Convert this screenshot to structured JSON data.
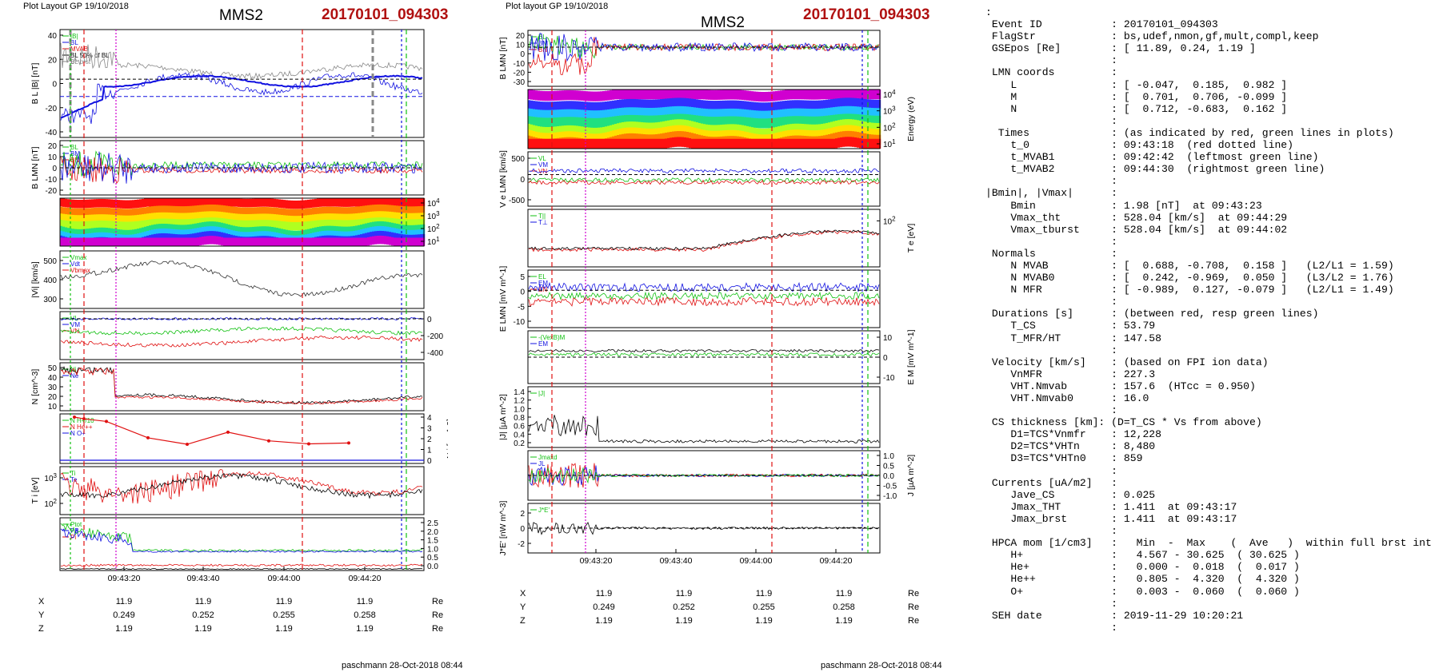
{
  "left": {
    "header": "Plot Layout GP 19/10/2018",
    "spacecraft": "MMS2",
    "event": "20170101_094303",
    "footer": "paschmann 28-Oct-2018 08:44",
    "time_ticks": [
      "09:43:20",
      "09:43:40",
      "09:44:00",
      "09:44:20"
    ],
    "coords": [
      {
        "axis": "X",
        "values": [
          "11.9",
          "11.9",
          "11.9",
          "11.9"
        ],
        "unit": "Re"
      },
      {
        "axis": "Y",
        "values": [
          "0.249",
          "0.252",
          "0.255",
          "0.258"
        ],
        "unit": "Re"
      },
      {
        "axis": "Z",
        "values": [
          "1.19",
          "1.19",
          "1.19",
          "1.19"
        ],
        "unit": "Re"
      }
    ],
    "panels": [
      {
        "id": "BL",
        "ylabel": "B_L |B| [nT]",
        "ticks": [
          "40",
          "20",
          "0",
          "-20",
          "-40"
        ],
        "legend": [
          "|B|",
          "BL",
          "MVAB",
          "BL 50% of BL",
          "BL brst"
        ]
      },
      {
        "id": "BLMN",
        "ylabel": "B_LMN [nT]",
        "ticks": [
          "20",
          "10",
          "0",
          "-10",
          "-20"
        ],
        "legend": [
          "BL",
          "BM",
          "BN"
        ]
      },
      {
        "id": "spec",
        "ylabel": "Energy (eV)",
        "ticks": [
          "10^4",
          "10^3",
          "10^2",
          "10^1"
        ]
      },
      {
        "id": "Vi",
        "ylabel": "|Vi| [km/s]",
        "ticks": [
          "500",
          "400",
          "300"
        ],
        "legend": [
          "Vmax",
          "Vdt",
          "Vbmax"
        ]
      },
      {
        "id": "ViLMN",
        "ylabel": "V_i LMN [km/s]",
        "ticks": [
          "0",
          "-200",
          "-400"
        ],
        "legend": [
          "VL",
          "VM",
          "VN"
        ]
      },
      {
        "id": "N",
        "ylabel": "N [cm^-3]",
        "ticks": [
          "50",
          "40",
          "30",
          "20",
          "10"
        ],
        "legend": [
          "Ni",
          "Ne"
        ]
      },
      {
        "id": "Ni",
        "ylabel": "N_i [cm^-3]",
        "ticks": [
          "4",
          "3",
          "2",
          "1",
          "0"
        ],
        "legend": [
          "N H+/10",
          "N He++",
          "N O+"
        ]
      },
      {
        "id": "Ti",
        "ylabel": "T_i [eV]",
        "ticks": [
          "10^3",
          "10^2"
        ],
        "legend": [
          "Ti",
          "Te"
        ]
      },
      {
        "id": "P",
        "ylabel": "P [nPa]",
        "ticks": [
          "2.5",
          "2.0",
          "1.5",
          "1.0",
          "0.5",
          "0.0"
        ],
        "legend": [
          "Ptot",
          "PB",
          "Pi"
        ]
      }
    ]
  },
  "middle": {
    "header": "Plot layout GP 19/10/2018",
    "spacecraft": "MMS2",
    "event": "20170101_094303",
    "footer": "paschmann 28-Oct-2018 08:44",
    "time_ticks": [
      "09:43:20",
      "09:43:40",
      "09:44:00",
      "09:44:20"
    ],
    "coords": [
      {
        "axis": "X",
        "values": [
          "11.9",
          "11.9",
          "11.9",
          "11.9"
        ],
        "unit": "Re"
      },
      {
        "axis": "Y",
        "values": [
          "0.249",
          "0.252",
          "0.255",
          "0.258"
        ],
        "unit": "Re"
      },
      {
        "axis": "Z",
        "values": [
          "1.19",
          "1.19",
          "1.19",
          "1.19"
        ],
        "unit": "Re"
      }
    ],
    "panels": [
      {
        "id": "BLMN",
        "ylabel": "B_LMN [nT]",
        "ticks": [
          "20",
          "10",
          "0",
          "-10",
          "-20",
          "-30"
        ],
        "legend": [
          "BL",
          "BM",
          "BN"
        ]
      },
      {
        "id": "espec",
        "ylabel": "Energy (eV)",
        "ticks": [
          "10^4",
          "10^3",
          "10^2",
          "10^1"
        ]
      },
      {
        "id": "Ve",
        "ylabel": "V_e LMN [km/s]",
        "ticks": [
          "500",
          "0",
          "-500"
        ],
        "legend": [
          "VL",
          "VM",
          "VN"
        ]
      },
      {
        "id": "Te",
        "ylabel": "T_e [eV]",
        "ticks": [
          "10^2"
        ],
        "legend": [
          "T||",
          "T⊥"
        ]
      },
      {
        "id": "E",
        "ylabel": "E_LMN [mV m^-1]",
        "ticks": [
          "5",
          "0",
          "-5",
          "-10"
        ],
        "legend": [
          "EL",
          "EM",
          "EN"
        ]
      },
      {
        "id": "EM",
        "ylabel": "E_M [mV m^-1]",
        "ticks": [
          "10",
          "0",
          "-10"
        ],
        "legend": [
          "-(VexB)M",
          "EM"
        ]
      },
      {
        "id": "J",
        "ylabel": "|J| [µA m^-2]",
        "ticks": [
          "1.4",
          "1.2",
          "1.0",
          "0.8",
          "0.6",
          "0.4",
          "0.2"
        ],
        "legend": [
          "|J|"
        ]
      },
      {
        "id": "JLMN",
        "ylabel": "J [µA m^-2]",
        "ticks": [
          "1.0",
          "0.5",
          "0.0",
          "-0.5",
          "-1.0"
        ],
        "legend": [
          "Jmaxd",
          "JL"
        ]
      },
      {
        "id": "JE",
        "ylabel": "J*E' [nW m^-3]",
        "ticks": [
          "2",
          "0",
          "-2"
        ],
        "legend": [
          "J*E'"
        ]
      }
    ]
  },
  "info": {
    "lines": [
      ":",
      " Event ID           : 20170101_094303",
      " FlagStr            : bs,udef,nmon,gf,mult,compl,keep",
      " GSEpos [Re]        : [ 11.89, 0.24, 1.19 ]",
      "                    :",
      " LMN coords         :",
      "    L               : [ -0.047,  0.185,  0.982 ]",
      "    M               : [  0.701,  0.706, -0.099 ]",
      "    N               : [  0.712, -0.683,  0.162 ]",
      "                    :",
      "  Times             : (as indicated by red, green lines in plots)",
      "    t_0             : 09:43:18  (red dotted line)",
      "    t_MVAB1         : 09:42:42  (leftmost green line)",
      "    t_MVAB2         : 09:44:30  (rightmost green line)",
      "                    :",
      "|Bmin|, |Vmax|      :",
      "    Bmin            : 1.98 [nT]  at 09:43:23",
      "    Vmax_tht        : 528.04 [km/s]  at 09:44:29",
      "    Vmax_tburst     : 528.04 [km/s]  at 09:44:02",
      "                    :",
      " Normals            :",
      "    N MVAB          : [  0.688, -0.708,  0.158 ]   (L2/L1 = 1.59)",
      "    N MVAB0         : [  0.242, -0.969,  0.050 ]   (L3/L2 = 1.76)",
      "    N MFR           : [ -0.989,  0.127, -0.079 ]   (L2/L1 = 1.49)",
      "                    :",
      " Durations [s]      : (between red, resp green lines)",
      "    T_CS            : 53.79",
      "    T_MFR/HT        : 147.58",
      "                    :",
      " Velocity [km/s]    : (based on FPI ion data)",
      "    VnMFR           : 227.3",
      "    VHT.Nmvab       : 157.6  (HTcc = 0.950)",
      "    VHT.Nmvab0      : 16.0",
      "                    :",
      " CS thickness [km]: (D=T_CS * Vs from above)",
      "    D1=TCS*Vnmfr    : 12,228",
      "    D2=TCS*VHTn     : 8,480",
      "    D3=TCS*VHTn0    : 859",
      "                    :",
      " Currents [uA/m2]   :",
      "    Jave_CS         : 0.025",
      "    Jmax_THT        : 1.411  at 09:43:17",
      "    Jmax_brst       : 1.411  at 09:43:17",
      "                    :",
      " HPCA mom [1/cm3]   :   Min  -  Max    (  Ave   )  within full brst int",
      "    H+              :   4.567 - 30.625  ( 30.625 )",
      "    He+             :   0.000 -  0.018  (  0.017 )",
      "    He++            :   0.805 -  4.320  (  4.320 )",
      "    O+              :   0.003 -  0.060  (  0.060 )",
      "                    :",
      " SEH date           : 2019-11-29 10:20:21",
      "                    :"
    ]
  },
  "colors": {
    "event": "#b01010",
    "red": "#e01010",
    "green": "#10c010",
    "blue": "#1010e0",
    "magenta": "#d000d0",
    "black": "#000000",
    "gray": "#888888"
  },
  "chart_data": [
    {
      "type": "line",
      "title": "MMS2 20170101_094303",
      "note": "multi-panel time series, x axis UT",
      "series": [
        {
          "name": "N H+/10",
          "points": [
            [
              "09:43:08",
              4.0
            ],
            [
              "09:43:15",
              3.6
            ],
            [
              "09:43:30",
              1.6
            ],
            [
              "09:43:38",
              1.0
            ],
            [
              "09:43:48",
              2.6
            ],
            [
              "09:43:58",
              1.2
            ],
            [
              "09:44:08",
              0.85
            ],
            [
              "09:44:18",
              0.9
            ]
          ]
        }
      ]
    }
  ]
}
